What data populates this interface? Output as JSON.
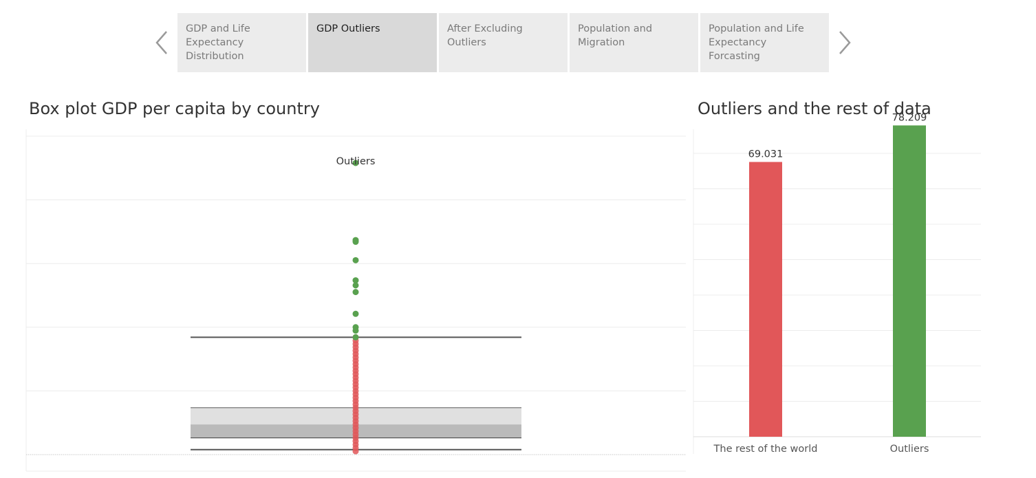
{
  "tabs": [
    {
      "label": "GDP and  Life Expectancy Distribution",
      "active": false
    },
    {
      "label": "GDP Outliers",
      "active": true
    },
    {
      "label": "After Excluding Outliers",
      "active": false
    },
    {
      "label": "Population and Migration",
      "active": false
    },
    {
      "label": "Population and Life Expectancy Forcasting",
      "active": false
    }
  ],
  "nav": {
    "prev_icon": "chevron-left-icon",
    "next_icon": "chevron-right-icon"
  },
  "colors": {
    "outlier": "#59a14f",
    "rest": "#e15759",
    "box_upper": "#e0e0e0",
    "box_lower": "#bababa",
    "whisker": "#555555"
  },
  "chart_data": [
    {
      "type": "box",
      "title": "Box plot GDP per capita by country",
      "annotation": "Outliers",
      "box": {
        "whisker_high": 6.0,
        "q3": 3.9,
        "median": 3.4,
        "q1": 3.0,
        "whisker_low": 2.65
      },
      "outliers": [
        11.2,
        8.9,
        8.85,
        8.3,
        7.7,
        7.55,
        7.35,
        6.7,
        6.3,
        6.2,
        6.0
      ],
      "points": [
        6.0,
        5.9,
        5.8,
        5.7,
        5.6,
        5.5,
        5.4,
        5.3,
        5.2,
        5.1,
        5.0,
        4.9,
        4.8,
        4.7,
        4.6,
        4.5,
        4.4,
        4.3,
        4.2,
        4.1,
        4.0,
        3.9,
        3.8,
        3.7,
        3.6,
        3.5,
        3.4,
        3.3,
        3.2,
        3.1,
        3.0,
        2.9,
        2.8,
        2.7,
        2.6
      ],
      "ylim": [
        2.5,
        12
      ],
      "grid": true
    },
    {
      "type": "bar",
      "title": "Outliers and the rest of data",
      "categories": [
        "The rest of the world",
        "Outliers"
      ],
      "values": [
        69.031,
        78.209
      ],
      "value_labels": [
        "69.031",
        "78.209"
      ],
      "ylim": [
        0,
        80
      ],
      "grid": true
    }
  ]
}
